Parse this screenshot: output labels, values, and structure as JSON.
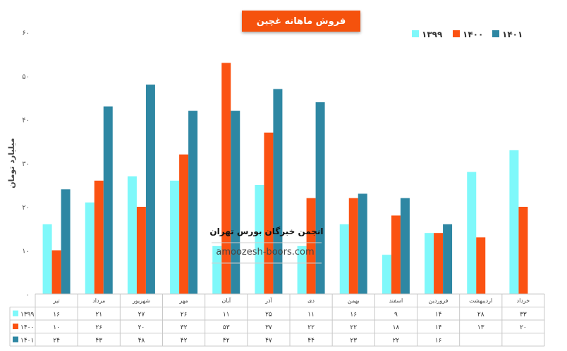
{
  "chart_data": {
    "type": "bar",
    "title": "فروش ماهانه غچین",
    "ylabel": "میلیارد تومان",
    "ylim": [
      0,
      60
    ],
    "yticks": [
      "0",
      "10",
      "20",
      "30",
      "40",
      "50",
      "60"
    ],
    "ytick_labels": [
      "۰",
      "۱۰",
      "۲۰",
      "۳۰",
      "۴۰",
      "۵۰",
      "۶۰"
    ],
    "categories": [
      "تیر",
      "مرداد",
      "شهریور",
      "مهر",
      "آبان",
      "آذر",
      "دی",
      "بهمن",
      "اسفند",
      "فروردین",
      "اردیبهشت",
      "خرداد"
    ],
    "series": [
      {
        "name": "۱۳۹۹",
        "color": "#7ff8fa",
        "values": [
          16,
          21,
          27,
          26,
          11,
          25,
          11,
          16,
          9,
          14,
          28,
          33
        ],
        "labels": [
          "۱۶",
          "۲۱",
          "۲۷",
          "۲۶",
          "۱۱",
          "۲۵",
          "۱۱",
          "۱۶",
          "۹",
          "۱۴",
          "۲۸",
          "۳۳"
        ]
      },
      {
        "name": "۱۴۰۰",
        "color": "#fb5212",
        "values": [
          10,
          26,
          20,
          32,
          53,
          37,
          22,
          22,
          18,
          14,
          13,
          20
        ],
        "labels": [
          "۱۰",
          "۲۶",
          "۲۰",
          "۳۲",
          "۵۳",
          "۳۷",
          "۲۲",
          "۲۲",
          "۱۸",
          "۱۴",
          "۱۳",
          "۲۰"
        ]
      },
      {
        "name": "۱۴۰۱",
        "color": "#2e87a3",
        "values": [
          24,
          43,
          48,
          42,
          42,
          47,
          44,
          23,
          22,
          16,
          null,
          null
        ],
        "labels": [
          "۲۴",
          "۴۳",
          "۴۸",
          "۴۲",
          "۴۲",
          "۴۷",
          "۴۴",
          "۲۳",
          "۲۲",
          "۱۶",
          "",
          ""
        ]
      }
    ],
    "legend_position": "top-right",
    "grid": false,
    "data_table": true
  },
  "watermark": {
    "line1": "انجمن خبرگان بورس تهران",
    "line2": "amoozesh-boors.com"
  }
}
